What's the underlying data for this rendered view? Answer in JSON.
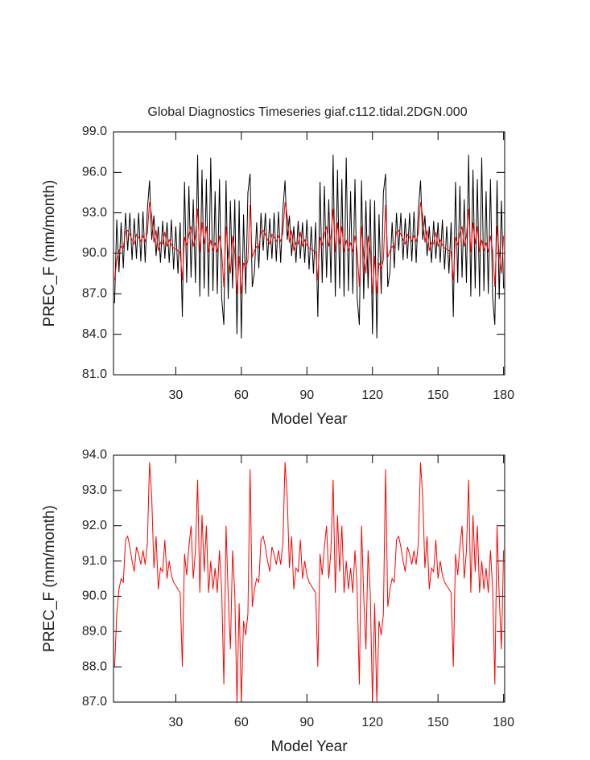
{
  "chart_data": [
    {
      "type": "line",
      "title": "Global Diagnostics Timeseries giaf.c112.tidal.2DGN.000",
      "x_label": "Model Year",
      "y_label": "PREC_F (mm/month)",
      "xlim": [
        1.5,
        180.5
      ],
      "xticks": [
        30,
        60,
        90,
        120,
        150,
        180
      ],
      "ylim": [
        81,
        99
      ],
      "yticks": [
        {
          "value": 81,
          "label": "81.0"
        },
        {
          "value": 84,
          "label": "84.0"
        },
        {
          "value": 87,
          "label": "87.0"
        },
        {
          "value": 90,
          "label": "90.0"
        },
        {
          "value": 93,
          "label": "93.0"
        },
        {
          "value": 96,
          "label": "96.0"
        },
        {
          "value": 99,
          "label": "99.0"
        }
      ],
      "x": [
        2,
        3,
        4,
        5,
        6,
        7,
        8,
        9,
        10,
        11,
        12,
        13,
        14,
        15,
        16,
        17,
        18,
        19,
        20,
        21,
        22,
        23,
        24,
        25,
        26,
        27,
        28,
        29,
        30,
        31,
        32,
        33,
        34,
        35,
        36,
        37,
        38,
        39,
        40,
        41,
        42,
        43,
        44,
        45,
        46,
        47,
        48,
        49,
        50,
        51,
        52,
        53,
        54,
        55,
        56,
        57,
        58,
        59,
        60,
        61,
        62,
        63,
        64,
        65,
        66,
        67,
        68,
        69,
        70,
        71,
        72,
        73,
        74,
        75,
        76,
        77,
        78,
        79,
        80,
        81,
        82,
        83,
        84,
        85,
        86,
        87,
        88,
        89,
        90,
        91,
        92,
        93,
        94,
        95,
        96,
        97,
        98,
        99,
        100,
        101,
        102,
        103,
        104,
        105,
        106,
        107,
        108,
        109,
        110,
        111,
        112,
        113,
        114,
        115,
        116,
        117,
        118,
        119,
        120,
        121,
        122,
        123,
        124,
        125,
        126,
        127,
        128,
        129,
        130,
        131,
        132,
        133,
        134,
        135,
        136,
        137,
        138,
        139,
        140,
        141,
        142,
        143,
        144,
        145,
        146,
        147,
        148,
        149,
        150,
        151,
        152,
        153,
        154,
        155,
        156,
        157,
        158,
        159,
        160,
        161,
        162,
        163,
        164,
        165,
        166,
        167,
        168,
        169,
        170,
        171,
        172,
        173,
        174,
        175,
        176,
        177,
        178,
        179,
        180
      ],
      "series": [
        {
          "color": "#000000",
          "values": [
            86.3,
            92.5,
            88.6,
            92.3,
            88.9,
            93.0,
            90.2,
            93.0,
            89.5,
            92.6,
            89.6,
            93.0,
            89.4,
            93.1,
            89.3,
            93.2,
            95.4,
            91.0,
            92.8,
            89.8,
            92.0,
            89.3,
            92.4,
            89.6,
            92.3,
            89.3,
            92.5,
            88.8,
            92.0,
            88.5,
            92.3,
            85.3,
            95.3,
            87.8,
            95.0,
            88.2,
            94.0,
            87.8,
            97.3,
            86.8,
            96.2,
            87.4,
            95.5,
            86.8,
            97.1,
            87.2,
            94.6,
            87.0,
            95.5,
            86.7,
            84.7,
            95.4,
            86.6,
            93.9,
            87.4,
            94.0,
            84.0,
            93.9,
            83.7,
            92.9,
            87.0,
            94.5,
            95.9,
            87.5,
            88.6,
            92.3,
            88.9,
            93.0,
            90.2,
            93.0,
            89.5,
            92.6,
            89.6,
            93.0,
            89.4,
            93.1,
            89.3,
            93.2,
            95.4,
            91.0,
            92.8,
            89.8,
            92.0,
            89.3,
            92.4,
            89.6,
            92.3,
            89.3,
            92.5,
            88.8,
            92.0,
            88.5,
            92.3,
            85.3,
            95.3,
            87.8,
            95.0,
            88.2,
            94.0,
            87.8,
            97.3,
            86.8,
            96.2,
            87.4,
            95.5,
            86.8,
            97.1,
            87.2,
            94.6,
            87.0,
            95.5,
            86.7,
            84.7,
            95.4,
            86.6,
            93.9,
            87.4,
            94.0,
            84.0,
            93.9,
            83.7,
            92.9,
            87.0,
            94.5,
            95.9,
            87.5,
            88.6,
            92.3,
            88.9,
            93.0,
            90.2,
            93.0,
            89.5,
            92.6,
            89.6,
            93.0,
            89.4,
            93.1,
            89.3,
            93.2,
            95.4,
            91.0,
            92.8,
            89.8,
            92.0,
            89.3,
            92.4,
            89.6,
            92.3,
            89.3,
            92.5,
            88.8,
            92.0,
            88.5,
            92.3,
            85.3,
            95.3,
            87.8,
            95.0,
            88.2,
            94.0,
            87.8,
            97.3,
            86.8,
            96.2,
            87.4,
            95.5,
            86.8,
            97.1,
            87.2,
            94.6,
            87.0,
            95.5,
            86.7,
            84.7,
            95.4,
            86.6,
            93.9,
            87.4
          ]
        },
        {
          "color": "#ff0000",
          "values": [
            88.0,
            89.5,
            90.2,
            90.5,
            90.4,
            91.6,
            91.7,
            91.4,
            91.0,
            90.7,
            91.4,
            91.2,
            90.9,
            91.3,
            90.9,
            91.5,
            93.8,
            92.8,
            90.8,
            91.7,
            90.2,
            90.8,
            90.7,
            91.6,
            90.5,
            91.0,
            90.6,
            90.4,
            90.3,
            90.2,
            90.1,
            88.0,
            91.2,
            90.6,
            91.4,
            92.0,
            90.5,
            91.3,
            93.3,
            90.1,
            92.3,
            90.7,
            92.0,
            90.1,
            91.0,
            90.2,
            90.8,
            90.1,
            91.3,
            90.2,
            87.5,
            92.0,
            90.0,
            88.5,
            91.3,
            90.1,
            87.0,
            89.8,
            87.0,
            89.3,
            88.9,
            89.5,
            93.6,
            89.7,
            90.2,
            90.5,
            90.4,
            91.6,
            91.7,
            91.4,
            91.0,
            90.7,
            91.4,
            91.2,
            90.9,
            91.3,
            90.9,
            91.5,
            93.8,
            92.8,
            90.8,
            91.7,
            90.2,
            90.8,
            90.7,
            91.6,
            90.5,
            91.0,
            90.6,
            90.4,
            90.3,
            90.2,
            90.1,
            88.0,
            91.2,
            90.6,
            91.4,
            92.0,
            90.5,
            91.3,
            93.3,
            90.1,
            92.3,
            90.7,
            92.0,
            90.1,
            91.0,
            90.2,
            90.8,
            90.1,
            91.3,
            90.2,
            87.5,
            92.0,
            90.0,
            88.5,
            91.3,
            90.1,
            87.0,
            89.8,
            87.0,
            89.3,
            88.9,
            89.5,
            93.6,
            89.7,
            90.2,
            90.5,
            90.4,
            91.6,
            91.7,
            91.4,
            91.0,
            90.7,
            91.4,
            91.2,
            90.9,
            91.3,
            90.9,
            91.5,
            93.8,
            92.8,
            90.8,
            91.7,
            90.2,
            90.8,
            90.7,
            91.6,
            90.5,
            91.0,
            90.6,
            90.4,
            90.3,
            90.2,
            90.1,
            88.0,
            91.2,
            90.6,
            91.4,
            92.0,
            90.5,
            91.3,
            93.3,
            90.1,
            92.3,
            90.7,
            92.0,
            90.1,
            91.0,
            90.2,
            90.8,
            90.1,
            91.3,
            90.2,
            87.5,
            92.0,
            90.0,
            88.5,
            91.3
          ]
        }
      ]
    },
    {
      "type": "line",
      "x_label": "Model Year",
      "y_label": "PREC_F (mm/month)",
      "xlim": [
        1.5,
        180.5
      ],
      "xticks": [
        30,
        60,
        90,
        120,
        150,
        180
      ],
      "ylim": [
        87,
        94
      ],
      "yticks": [
        {
          "value": 87,
          "label": "87.0"
        },
        {
          "value": 88,
          "label": "88.0"
        },
        {
          "value": 89,
          "label": "89.0"
        },
        {
          "value": 90,
          "label": "90.0"
        },
        {
          "value": 91,
          "label": "91.0"
        },
        {
          "value": 92,
          "label": "92.0"
        },
        {
          "value": 93,
          "label": "93.0"
        },
        {
          "value": 94,
          "label": "94.0"
        }
      ],
      "x": [
        2,
        3,
        4,
        5,
        6,
        7,
        8,
        9,
        10,
        11,
        12,
        13,
        14,
        15,
        16,
        17,
        18,
        19,
        20,
        21,
        22,
        23,
        24,
        25,
        26,
        27,
        28,
        29,
        30,
        31,
        32,
        33,
        34,
        35,
        36,
        37,
        38,
        39,
        40,
        41,
        42,
        43,
        44,
        45,
        46,
        47,
        48,
        49,
        50,
        51,
        52,
        53,
        54,
        55,
        56,
        57,
        58,
        59,
        60,
        61,
        62,
        63,
        64,
        65,
        66,
        67,
        68,
        69,
        70,
        71,
        72,
        73,
        74,
        75,
        76,
        77,
        78,
        79,
        80,
        81,
        82,
        83,
        84,
        85,
        86,
        87,
        88,
        89,
        90,
        91,
        92,
        93,
        94,
        95,
        96,
        97,
        98,
        99,
        100,
        101,
        102,
        103,
        104,
        105,
        106,
        107,
        108,
        109,
        110,
        111,
        112,
        113,
        114,
        115,
        116,
        117,
        118,
        119,
        120,
        121,
        122,
        123,
        124,
        125,
        126,
        127,
        128,
        129,
        130,
        131,
        132,
        133,
        134,
        135,
        136,
        137,
        138,
        139,
        140,
        141,
        142,
        143,
        144,
        145,
        146,
        147,
        148,
        149,
        150,
        151,
        152,
        153,
        154,
        155,
        156,
        157,
        158,
        159,
        160,
        161,
        162,
        163,
        164,
        165,
        166,
        167,
        168,
        169,
        170,
        171,
        172,
        173,
        174,
        175,
        176,
        177,
        178,
        179,
        180
      ],
      "series": [
        {
          "color": "#ff0000",
          "values": [
            88.0,
            89.5,
            90.2,
            90.5,
            90.4,
            91.6,
            91.7,
            91.4,
            91.0,
            90.7,
            91.4,
            91.2,
            90.9,
            91.3,
            90.9,
            91.5,
            93.8,
            92.8,
            90.8,
            91.7,
            90.2,
            90.8,
            90.7,
            91.6,
            90.5,
            91.0,
            90.6,
            90.4,
            90.3,
            90.2,
            90.1,
            88.0,
            91.2,
            90.6,
            91.4,
            92.0,
            90.5,
            91.3,
            93.3,
            90.1,
            92.3,
            90.7,
            92.0,
            90.1,
            91.0,
            90.2,
            90.8,
            90.1,
            91.3,
            90.2,
            87.5,
            92.0,
            90.0,
            88.5,
            91.3,
            90.1,
            87.0,
            89.8,
            87.0,
            89.3,
            88.9,
            89.5,
            93.6,
            89.7,
            90.2,
            90.5,
            90.4,
            91.6,
            91.7,
            91.4,
            91.0,
            90.7,
            91.4,
            91.2,
            90.9,
            91.3,
            90.9,
            91.5,
            93.8,
            92.8,
            90.8,
            91.7,
            90.2,
            90.8,
            90.7,
            91.6,
            90.5,
            91.0,
            90.6,
            90.4,
            90.3,
            90.2,
            90.1,
            88.0,
            91.2,
            90.6,
            91.4,
            92.0,
            90.5,
            91.3,
            93.3,
            90.1,
            92.3,
            90.7,
            92.0,
            90.1,
            91.0,
            90.2,
            90.8,
            90.1,
            91.3,
            90.2,
            87.5,
            92.0,
            90.0,
            88.5,
            91.3,
            90.1,
            87.0,
            89.8,
            87.0,
            89.3,
            88.9,
            89.5,
            93.6,
            89.7,
            90.2,
            90.5,
            90.4,
            91.6,
            91.7,
            91.4,
            91.0,
            90.7,
            91.4,
            91.2,
            90.9,
            91.3,
            90.9,
            91.5,
            93.8,
            92.8,
            90.8,
            91.7,
            90.2,
            90.8,
            90.7,
            91.6,
            90.5,
            91.0,
            90.6,
            90.4,
            90.3,
            90.2,
            90.1,
            88.0,
            91.2,
            90.6,
            91.4,
            92.0,
            90.5,
            91.3,
            93.3,
            90.1,
            92.3,
            90.7,
            92.0,
            90.1,
            91.0,
            90.2,
            90.8,
            90.1,
            91.3,
            90.2,
            87.5,
            92.0,
            90.0,
            88.5,
            91.3
          ]
        }
      ]
    }
  ]
}
